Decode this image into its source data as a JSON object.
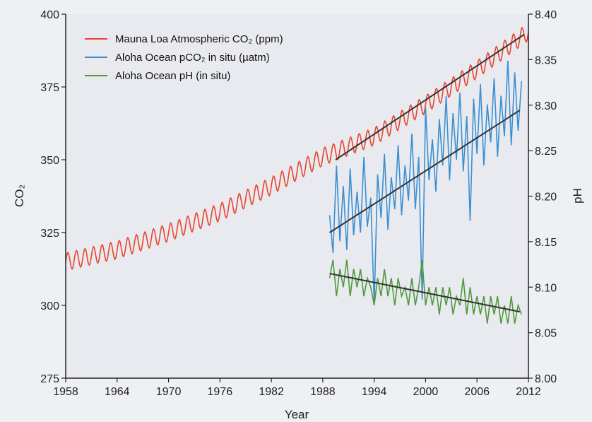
{
  "chart_data": {
    "type": "line",
    "xlabel": "Year",
    "ylabel_left": "CO₂",
    "ylabel_right": "pH",
    "xlim": [
      1958,
      2012
    ],
    "ylim_left": [
      275,
      400
    ],
    "ylim_right": [
      8.0,
      8.4
    ],
    "x_ticks": [
      "1958",
      "1964",
      "1970",
      "1976",
      "1982",
      "1988",
      "1994",
      "2000",
      "2006",
      "2012"
    ],
    "y_left_ticks": [
      "275",
      "300",
      "325",
      "350",
      "375",
      "400"
    ],
    "y_right_ticks": [
      "8.00",
      "8.05",
      "8.10",
      "8.15",
      "8.20",
      "8.25",
      "8.30",
      "8.35",
      "8.40"
    ],
    "grid": false,
    "legend_position": "top-left",
    "legend": [
      "Mauna Loa Atmospheric CO₂ (ppm)",
      "Aloha Ocean pCO₂ in situ (µatm)",
      "Aloha Ocean pH (in situ)"
    ],
    "series": [
      {
        "name": "Mauna Loa Atmospheric CO₂ (ppm)",
        "axis": "left",
        "color": "#e8452c",
        "seasonal_amplitude": 3,
        "x": [
          1958,
          1964,
          1970,
          1976,
          1982,
          1988,
          1994,
          2000,
          2006,
          2012
        ],
        "values": [
          315,
          319,
          325,
          332,
          341,
          351,
          358,
          369,
          381,
          394
        ]
      },
      {
        "name": "Aloha Ocean pCO₂ in situ (µatm)",
        "axis": "left",
        "color": "#3b8fd0",
        "x": [
          1988.8,
          1989.2,
          1989.6,
          1990.0,
          1990.4,
          1990.8,
          1991.2,
          1991.6,
          1992.0,
          1992.4,
          1992.8,
          1993.2,
          1993.6,
          1994.0,
          1994.4,
          1994.8,
          1995.2,
          1995.6,
          1996.0,
          1996.4,
          1996.8,
          1997.2,
          1997.6,
          1998.0,
          1998.4,
          1998.8,
          1999.2,
          1999.6,
          2000.0,
          2000.4,
          2000.8,
          2001.2,
          2001.6,
          2002.0,
          2002.4,
          2002.8,
          2003.2,
          2003.6,
          2004.0,
          2004.4,
          2004.8,
          2005.2,
          2005.6,
          2006.0,
          2006.4,
          2006.8,
          2007.2,
          2007.6,
          2008.0,
          2008.4,
          2008.8,
          2009.2,
          2009.6,
          2010.0,
          2010.4,
          2010.8,
          2011.2
        ],
        "values": [
          331,
          318,
          348,
          322,
          341,
          319,
          347,
          324,
          339,
          325,
          351,
          327,
          337,
          300,
          345,
          330,
          352,
          326,
          344,
          333,
          355,
          331,
          348,
          336,
          359,
          333,
          351,
          302,
          368,
          343,
          357,
          339,
          364,
          348,
          372,
          343,
          366,
          350,
          373,
          346,
          365,
          329,
          371,
          352,
          376,
          348,
          369,
          356,
          378,
          351,
          372,
          358,
          384,
          355,
          380,
          360,
          377
        ]
      },
      {
        "name": "Aloha Ocean pH (in situ)",
        "axis": "right",
        "color": "#4f9a3a",
        "x": [
          1988.8,
          1989.2,
          1989.6,
          1990.0,
          1990.4,
          1990.8,
          1991.2,
          1991.6,
          1992.0,
          1992.4,
          1992.8,
          1993.2,
          1993.6,
          1994.0,
          1994.4,
          1994.8,
          1995.2,
          1995.6,
          1996.0,
          1996.4,
          1996.8,
          1997.2,
          1997.6,
          1998.0,
          1998.4,
          1998.8,
          1999.2,
          1999.6,
          2000.0,
          2000.4,
          2000.8,
          2001.2,
          2001.6,
          2002.0,
          2002.4,
          2002.8,
          2003.2,
          2003.6,
          2004.0,
          2004.4,
          2004.8,
          2005.2,
          2005.6,
          2006.0,
          2006.4,
          2006.8,
          2007.2,
          2007.6,
          2008.0,
          2008.4,
          2008.8,
          2009.2,
          2009.6,
          2010.0,
          2010.4,
          2010.8,
          2011.2
        ],
        "values": [
          8.11,
          8.13,
          8.09,
          8.12,
          8.1,
          8.13,
          8.09,
          8.12,
          8.1,
          8.12,
          8.09,
          8.11,
          8.1,
          8.08,
          8.11,
          8.09,
          8.12,
          8.09,
          8.11,
          8.08,
          8.11,
          8.09,
          8.1,
          8.08,
          8.11,
          8.08,
          8.1,
          8.13,
          8.08,
          8.1,
          8.08,
          8.1,
          8.07,
          8.1,
          8.08,
          8.1,
          8.07,
          8.09,
          8.08,
          8.11,
          8.07,
          8.1,
          8.07,
          8.09,
          8.07,
          8.09,
          8.06,
          8.09,
          8.07,
          8.09,
          8.06,
          8.08,
          8.06,
          8.09,
          8.06,
          8.08,
          8.07
        ]
      }
    ],
    "trend_lines": [
      {
        "axis": "left",
        "color": "#333333",
        "x": [
          1989.5,
          2011.5
        ],
        "values": [
          350,
          393
        ]
      },
      {
        "axis": "left",
        "color": "#333333",
        "x": [
          1988.8,
          2011.0
        ],
        "values": [
          325,
          367
        ]
      },
      {
        "axis": "right",
        "color": "#333333",
        "x": [
          1988.8,
          2011.0
        ],
        "values": [
          8.115,
          8.073
        ]
      }
    ]
  }
}
